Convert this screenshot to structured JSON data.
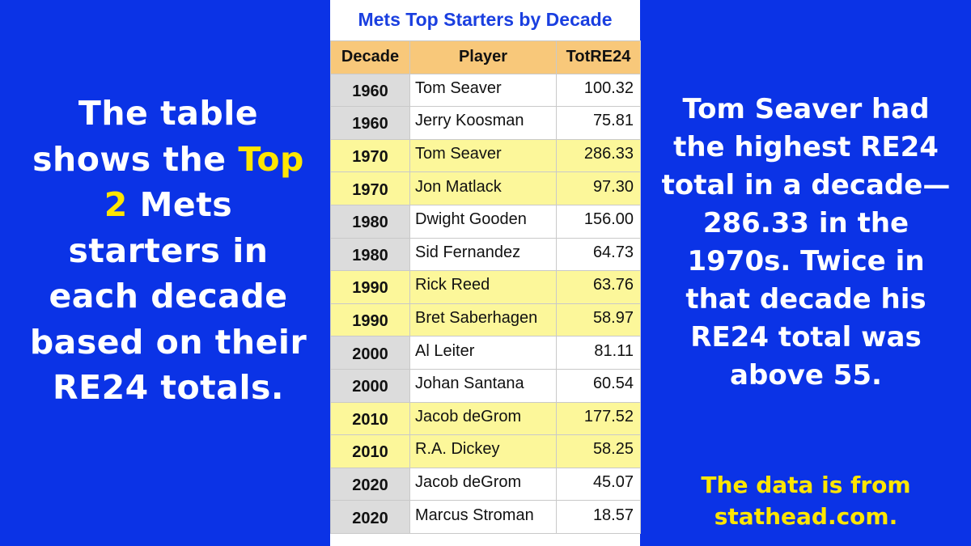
{
  "left_text": {
    "before": "The table shows the ",
    "highlight": "Top 2",
    "after": " Mets starters in each decade based on their RE24 totals."
  },
  "right_text": "Tom Seaver had the highest RE24 total in a decade—286.33 in the 1970s. Twice in that decade his RE24 total was above 55.",
  "source_text": "The data is from stathead.com.",
  "colors": {
    "background": "#0b33e6",
    "highlight_text": "#ffe600",
    "header_fill": "#f8c87a",
    "row_highlight": "#fcf79a",
    "decade_cell": "#dcdcdc",
    "title_text": "#1a3fe0"
  },
  "table": {
    "title": "Mets Top Starters by Decade",
    "headers": [
      "Decade",
      "Player",
      "TotRE24"
    ],
    "rows": [
      {
        "decade": "1960",
        "player": "Tom Seaver",
        "tot": "100.32",
        "highlight": false
      },
      {
        "decade": "1960",
        "player": "Jerry Koosman",
        "tot": "75.81",
        "highlight": false
      },
      {
        "decade": "1970",
        "player": "Tom Seaver",
        "tot": "286.33",
        "highlight": true
      },
      {
        "decade": "1970",
        "player": "Jon Matlack",
        "tot": "97.30",
        "highlight": true
      },
      {
        "decade": "1980",
        "player": "Dwight Gooden",
        "tot": "156.00",
        "highlight": false
      },
      {
        "decade": "1980",
        "player": "Sid Fernandez",
        "tot": "64.73",
        "highlight": false
      },
      {
        "decade": "1990",
        "player": "Rick Reed",
        "tot": "63.76",
        "highlight": true
      },
      {
        "decade": "1990",
        "player": "Bret Saberhagen",
        "tot": "58.97",
        "highlight": true
      },
      {
        "decade": "2000",
        "player": "Al Leiter",
        "tot": "81.11",
        "highlight": false
      },
      {
        "decade": "2000",
        "player": "Johan Santana",
        "tot": "60.54",
        "highlight": false
      },
      {
        "decade": "2010",
        "player": "Jacob deGrom",
        "tot": "177.52",
        "highlight": true
      },
      {
        "decade": "2010",
        "player": "R.A. Dickey",
        "tot": "58.25",
        "highlight": true
      },
      {
        "decade": "2020",
        "player": "Jacob deGrom",
        "tot": "45.07",
        "highlight": false
      },
      {
        "decade": "2020",
        "player": "Marcus Stroman",
        "tot": "18.57",
        "highlight": false
      }
    ]
  }
}
